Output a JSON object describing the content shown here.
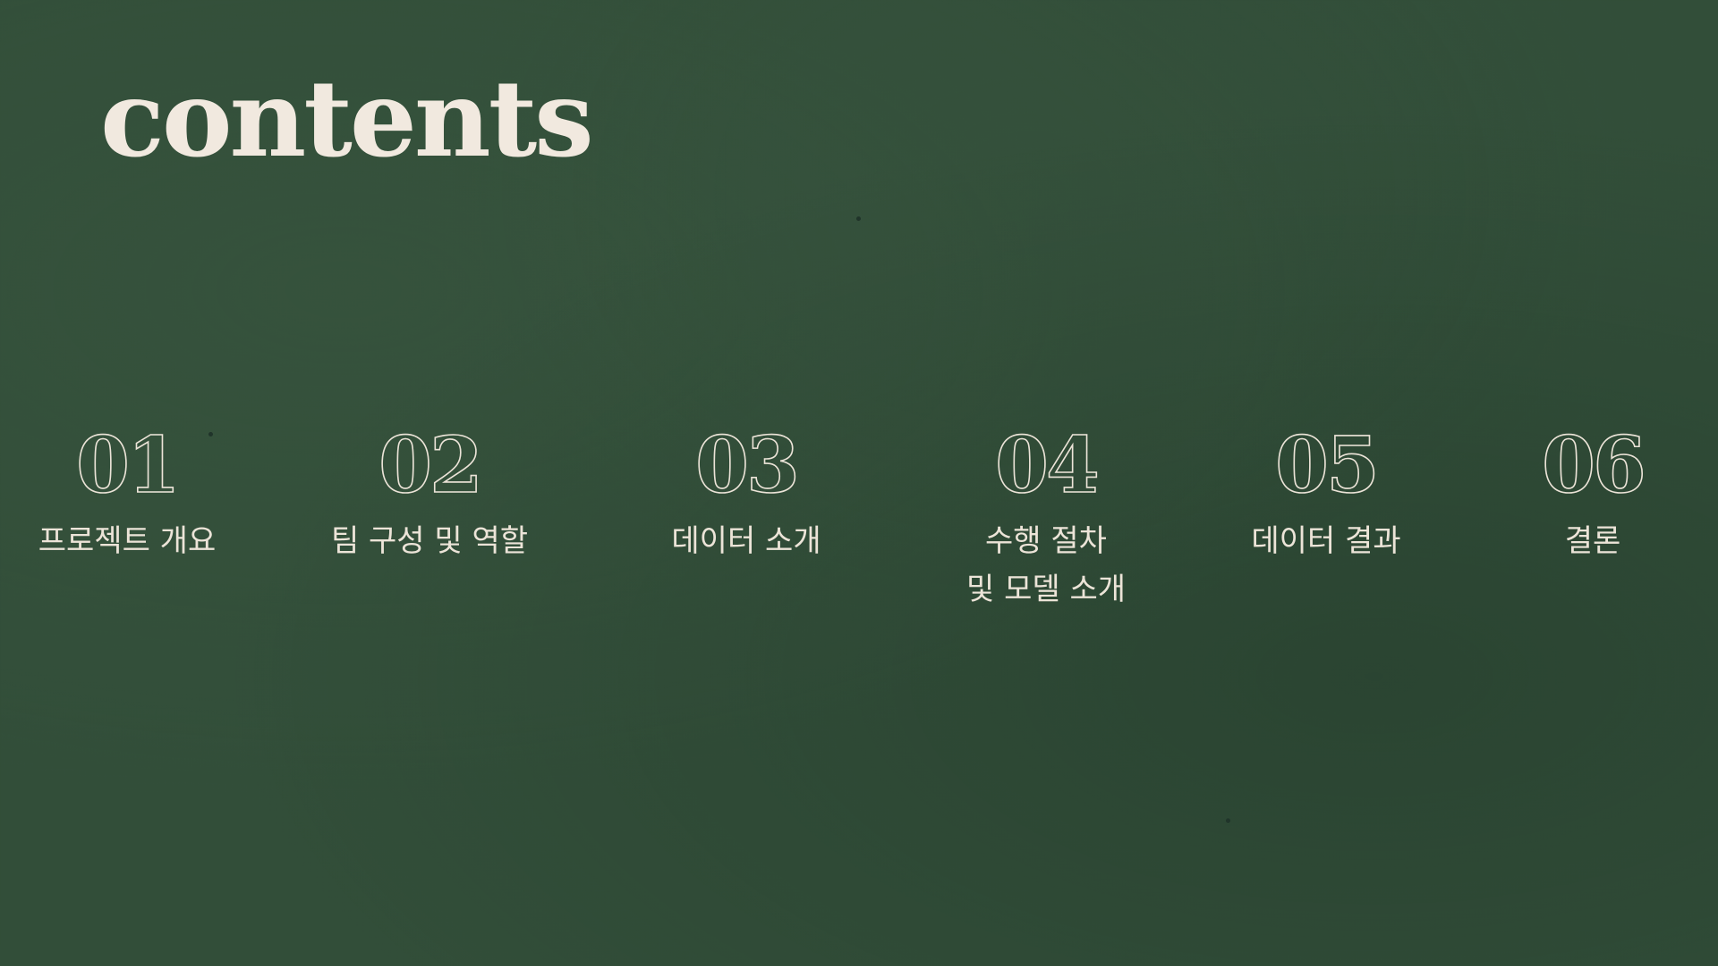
{
  "slide": {
    "title": "contents",
    "items": [
      {
        "number": "01",
        "label": "프로젝트 개요"
      },
      {
        "number": "02",
        "label": "팀 구성 및 역할"
      },
      {
        "number": "03",
        "label": "데이터 소개"
      },
      {
        "number": "04",
        "label": "수행 절차\n및 모델 소개"
      },
      {
        "number": "05",
        "label": "데이터 결과"
      },
      {
        "number": "06",
        "label": "결론"
      }
    ]
  },
  "colors": {
    "background": "#324e39",
    "text": "#ece4d8",
    "title": "#f1e9df"
  }
}
